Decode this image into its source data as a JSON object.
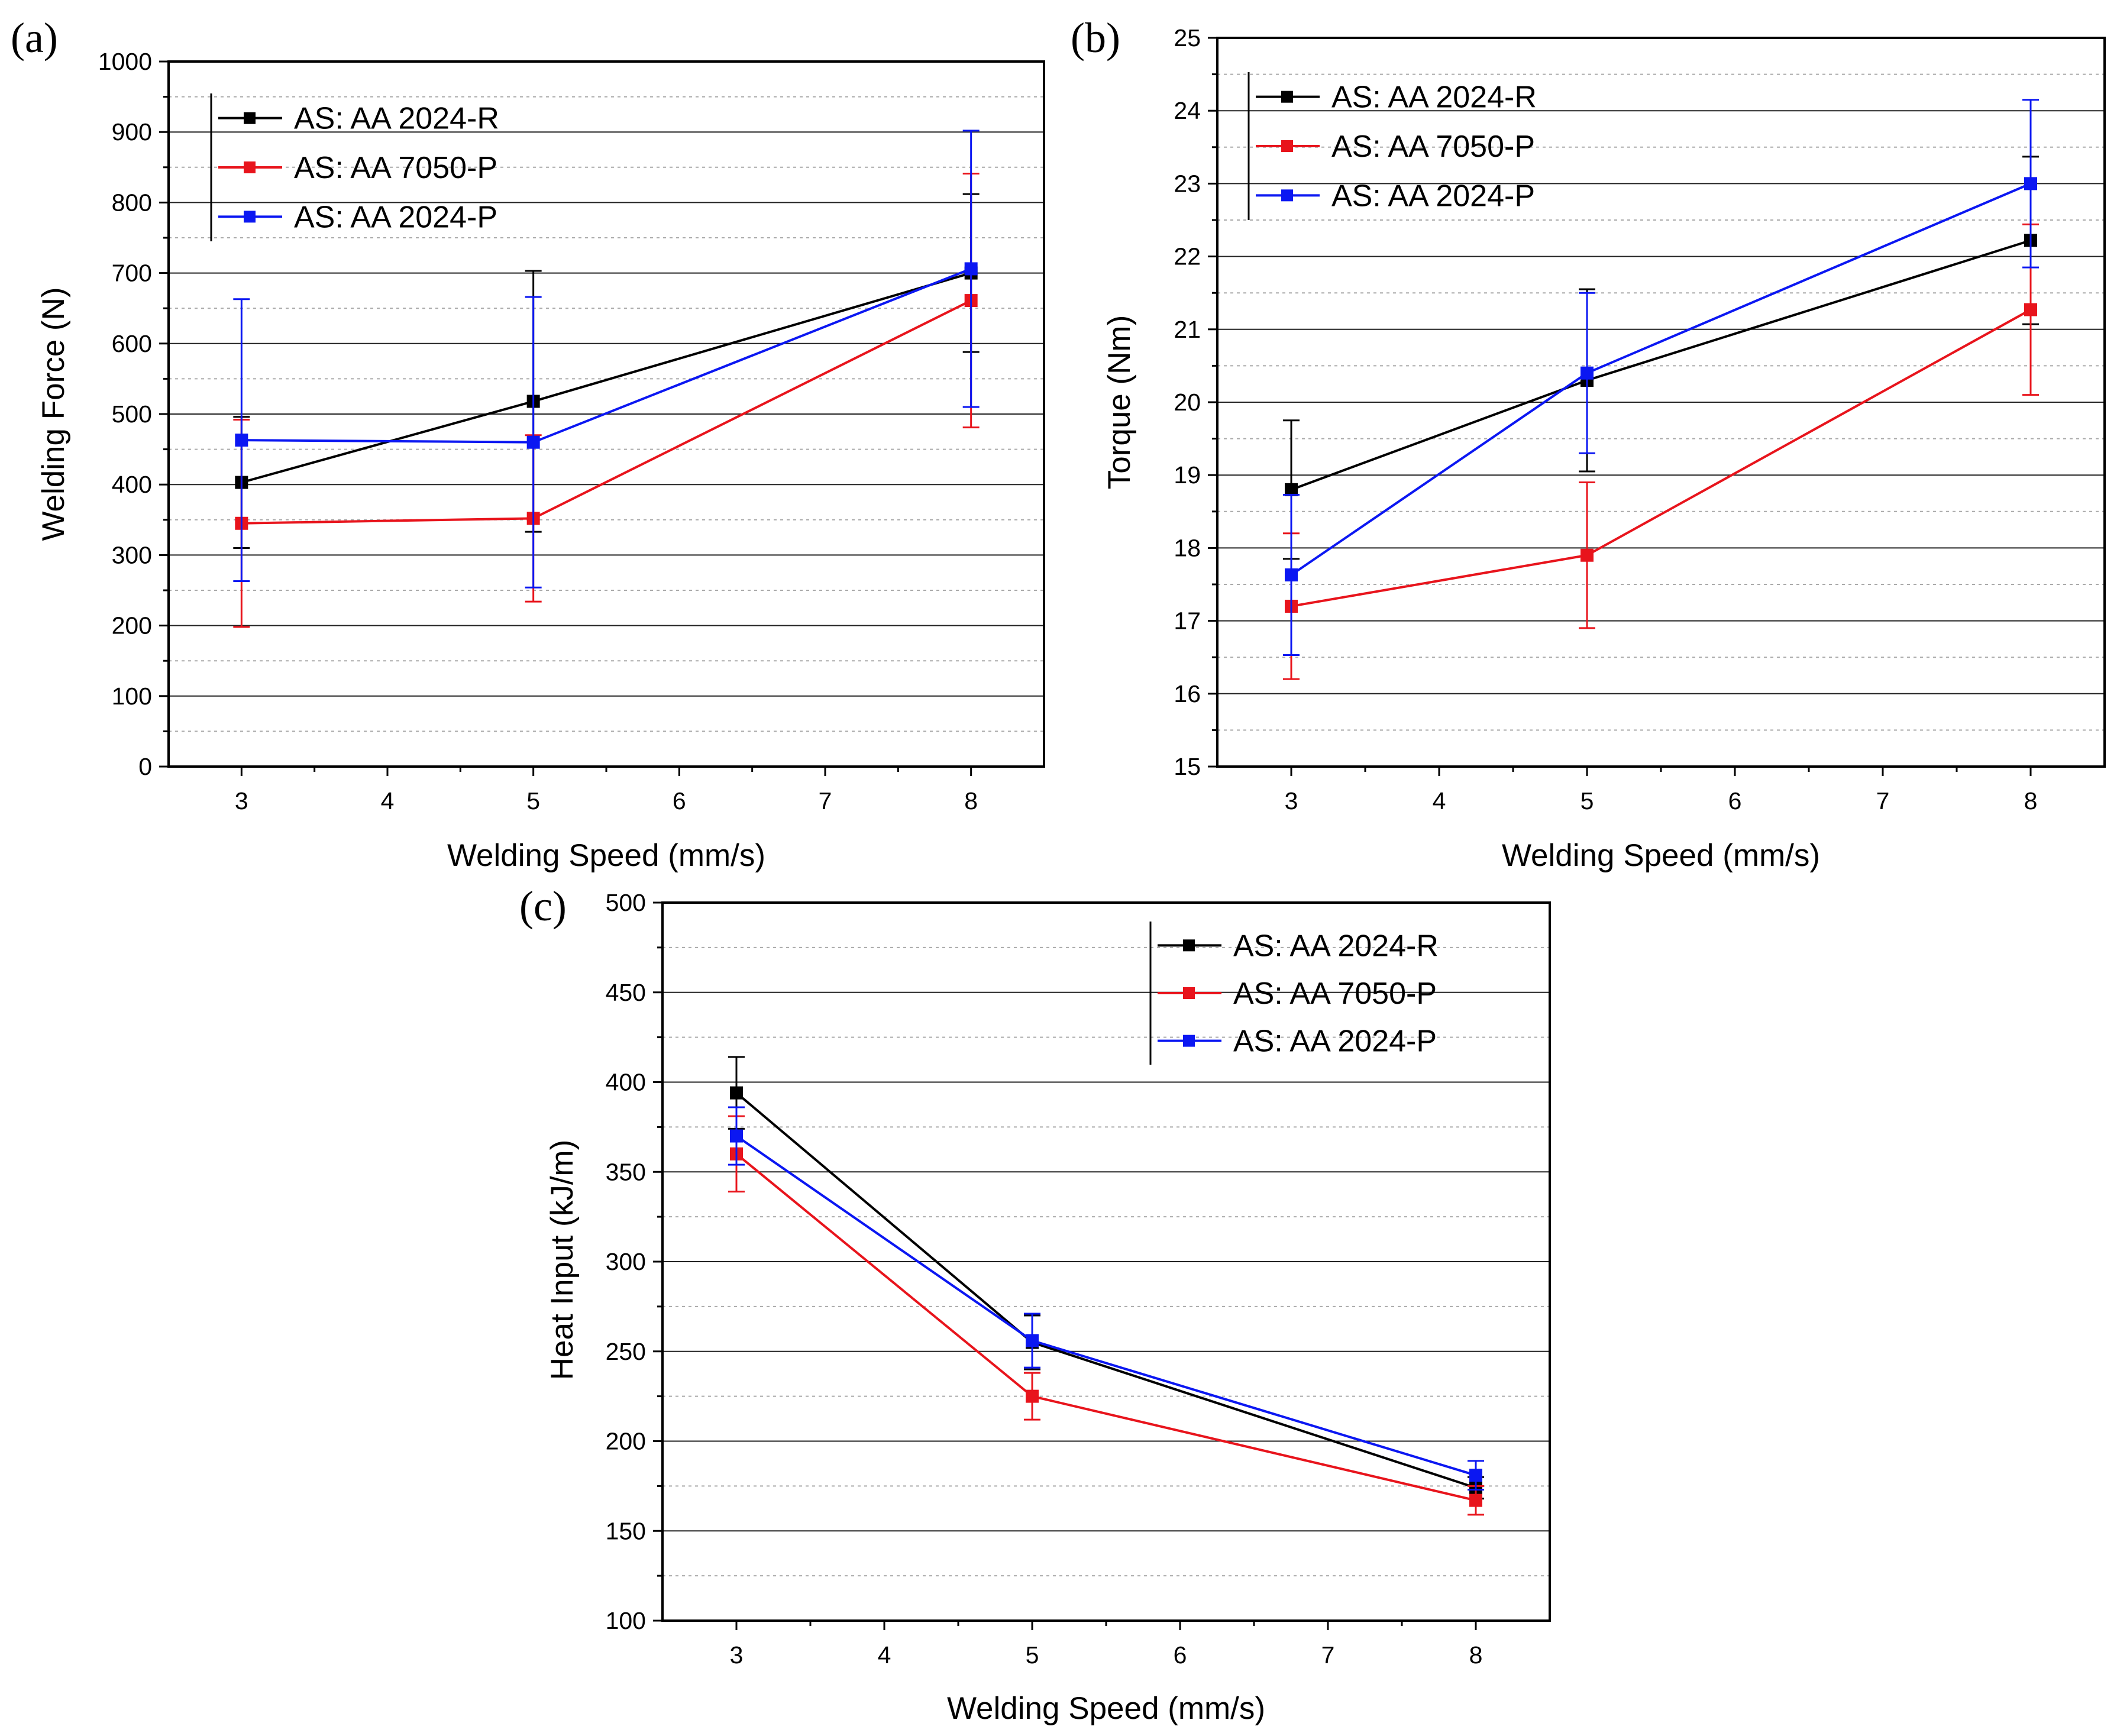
{
  "colors": {
    "AS: AA 2024-R": "#000000",
    "AS: AA 7050-P": "#e8141c",
    "AS: AA 2024-P": "#0b17f2",
    "grid_major": "#222222",
    "grid_minor": "#aaaaaa"
  },
  "chart_data": [
    {
      "type": "line",
      "panel_label": "(a)",
      "title": "",
      "xlabel": "Welding Speed (mm/s)",
      "ylabel": "Welding Force (N)",
      "xlim": [
        2.5,
        8.5
      ],
      "ylim": [
        0,
        1000
      ],
      "xticks": [
        3,
        4,
        5,
        6,
        7,
        8
      ],
      "yticks": [
        0,
        100,
        200,
        300,
        400,
        500,
        600,
        700,
        800,
        900,
        1000
      ],
      "grid": true,
      "legend_position": "top-left",
      "x": [
        3,
        5,
        8
      ],
      "series": [
        {
          "name": "AS: AA 2024-R",
          "values": [
            403,
            518,
            700
          ],
          "err": [
            93,
            185,
            112
          ]
        },
        {
          "name": "AS: AA 7050-P",
          "values": [
            345,
            352,
            661
          ],
          "err": [
            147,
            118,
            180
          ]
        },
        {
          "name": "AS: AA 2024-P",
          "values": [
            463,
            460,
            706
          ],
          "err": [
            200,
            206,
            196
          ]
        }
      ]
    },
    {
      "type": "line",
      "panel_label": "(b)",
      "title": "",
      "xlabel": "Welding Speed (mm/s)",
      "ylabel": "Torque (Nm)",
      "xlim": [
        2.5,
        8.5
      ],
      "ylim": [
        15,
        25
      ],
      "xticks": [
        3,
        4,
        5,
        6,
        7,
        8
      ],
      "yticks": [
        15,
        16,
        17,
        18,
        19,
        20,
        21,
        22,
        23,
        24,
        25
      ],
      "grid": true,
      "legend_position": "top-left",
      "x": [
        3,
        5,
        8
      ],
      "series": [
        {
          "name": "AS: AA 2024-R",
          "values": [
            18.8,
            20.3,
            22.22
          ],
          "err": [
            0.95,
            1.25,
            1.15
          ]
        },
        {
          "name": "AS: AA 7050-P",
          "values": [
            17.2,
            17.9,
            21.27
          ],
          "err": [
            1.0,
            1.0,
            1.17
          ]
        },
        {
          "name": "AS: AA 2024-P",
          "values": [
            17.63,
            20.4,
            23.0
          ],
          "err": [
            1.1,
            1.1,
            1.15
          ]
        }
      ]
    },
    {
      "type": "line",
      "panel_label": "(c)",
      "title": "",
      "xlabel": "Welding Speed (mm/s)",
      "ylabel": "Heat Input (kJ/m)",
      "xlim": [
        2.5,
        8.5
      ],
      "ylim": [
        100,
        500
      ],
      "xticks": [
        3,
        4,
        5,
        6,
        7,
        8
      ],
      "yticks": [
        100,
        150,
        200,
        250,
        300,
        350,
        400,
        450,
        500
      ],
      "grid": true,
      "legend_position": "top-right",
      "x": [
        3,
        5,
        8
      ],
      "series": [
        {
          "name": "AS: AA 2024-R",
          "values": [
            394,
            255,
            174
          ],
          "err": [
            20,
            15,
            6
          ]
        },
        {
          "name": "AS: AA 7050-P",
          "values": [
            360,
            225,
            167
          ],
          "err": [
            21,
            13,
            8
          ]
        },
        {
          "name": "AS: AA 2024-P",
          "values": [
            370,
            256,
            181
          ],
          "err": [
            16,
            15,
            8
          ]
        }
      ]
    }
  ]
}
